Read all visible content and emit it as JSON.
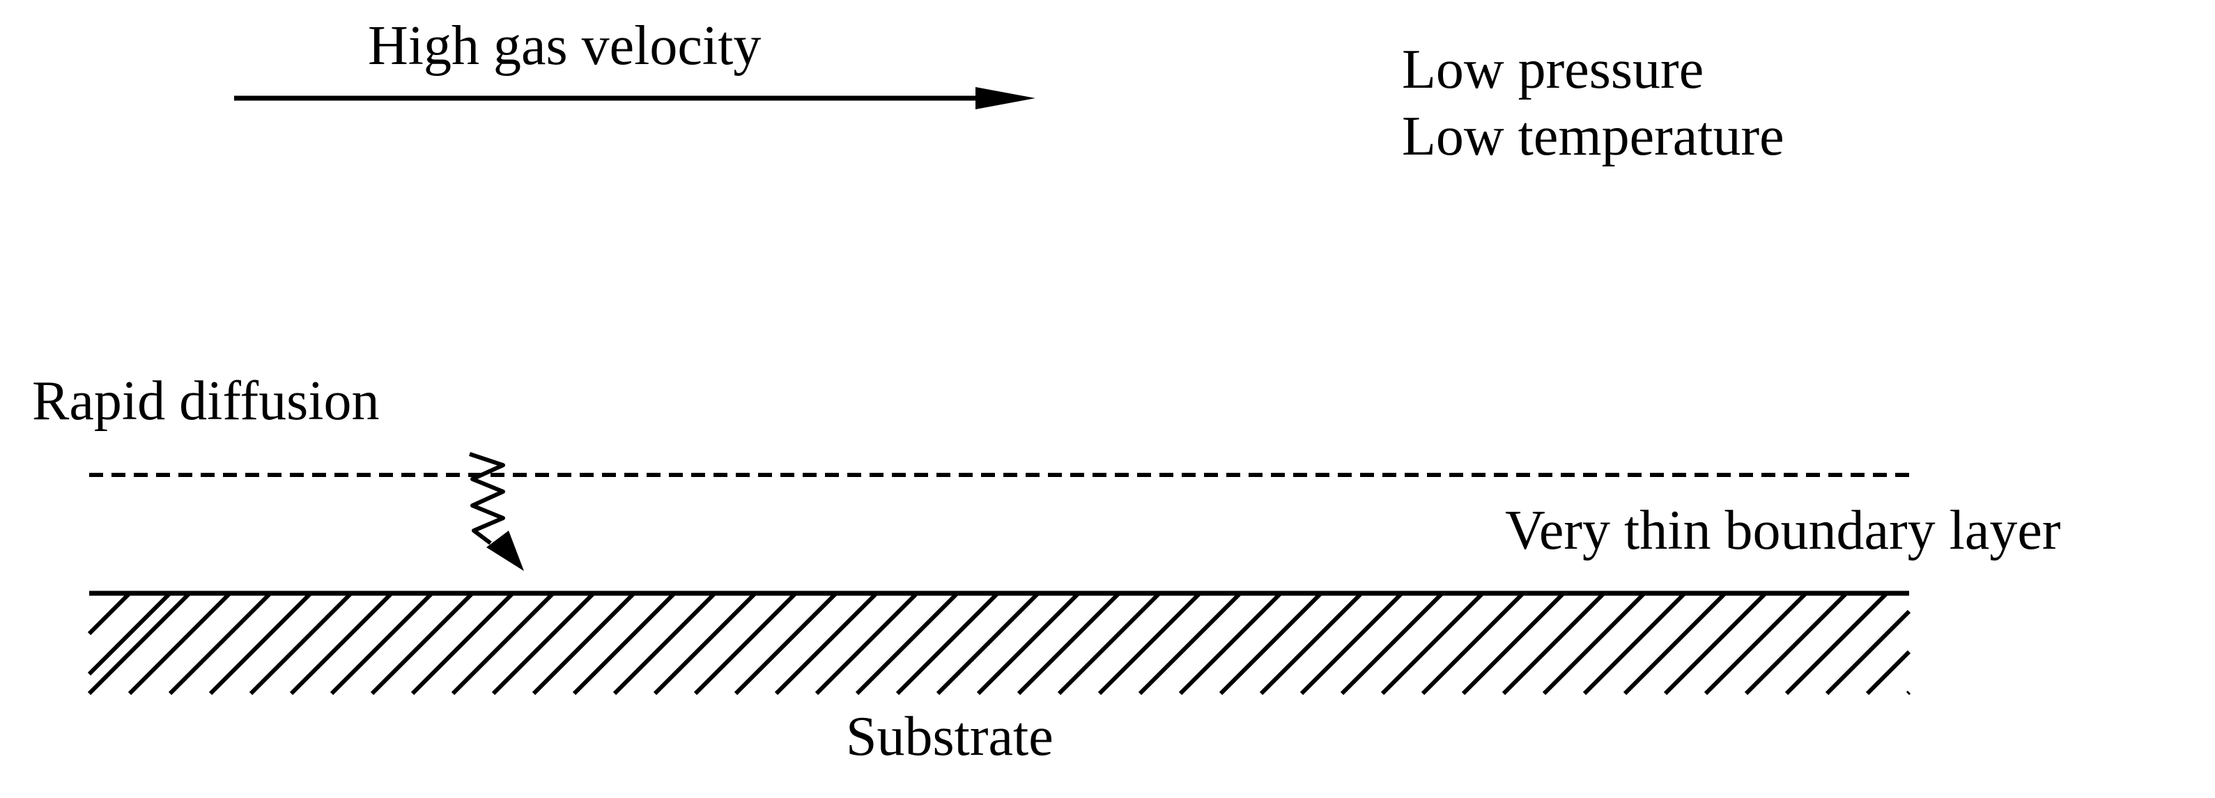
{
  "diagram": {
    "labels": {
      "gas_velocity": "High gas velocity",
      "pressure": "Low pressure",
      "temperature": "Low temperature",
      "diffusion": "Rapid diffusion",
      "boundary_layer": "Very thin boundary layer",
      "substrate": "Substrate"
    },
    "colors": {
      "ink": "#000000",
      "background": "#ffffff"
    },
    "icons": {
      "flow_arrow": "right-arrow",
      "diffusion_path": "wavy-down-arrow",
      "substrate_fill": "diagonal-hatch"
    }
  }
}
